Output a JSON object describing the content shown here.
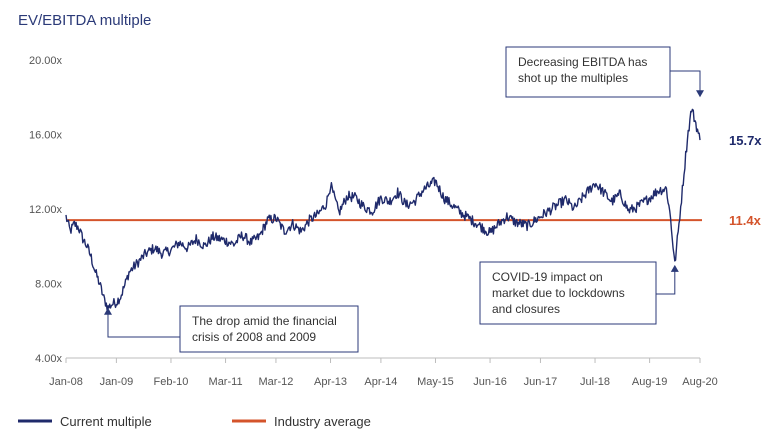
{
  "chart_data": {
    "type": "line",
    "title": "EV/EBITDA multiple",
    "xlabel": "",
    "ylabel": "",
    "ylim": [
      4,
      20
    ],
    "yticks": [
      4,
      8,
      12,
      16,
      20
    ],
    "ytick_labels": [
      "4.00x",
      "8.00x",
      "12.00x",
      "16.00x",
      "20.00x"
    ],
    "xlim": [
      "2008-01",
      "2020-08"
    ],
    "xticks": [
      "2008-01",
      "2009-01",
      "2010-02",
      "2011-03",
      "2012-03",
      "2013-04",
      "2014-04",
      "2015-05",
      "2016-06",
      "2017-06",
      "2018-07",
      "2019-08",
      "2020-08"
    ],
    "xtick_labels": [
      "Jan-08",
      "Jan-09",
      "Feb-10",
      "Mar-11",
      "Mar-12",
      "Apr-13",
      "Apr-14",
      "May-15",
      "Jun-16",
      "Jun-17",
      "Jul-18",
      "Aug-19",
      "Aug-20"
    ],
    "grid": false,
    "legend": "bottom",
    "colors": {
      "current": "#1f2a6b",
      "average": "#d4542b",
      "title": "#2b3a78"
    },
    "series": [
      {
        "name": "Current multiple",
        "x": [
          "2008-01",
          "2008-02",
          "2008-03",
          "2008-04",
          "2008-05",
          "2008-06",
          "2008-07",
          "2008-08",
          "2008-09",
          "2008-10",
          "2008-11",
          "2008-12",
          "2009-01",
          "2009-02",
          "2009-03",
          "2009-04",
          "2009-06",
          "2009-08",
          "2009-10",
          "2009-12",
          "2010-02",
          "2010-04",
          "2010-06",
          "2010-08",
          "2010-10",
          "2010-12",
          "2011-03",
          "2011-05",
          "2011-07",
          "2011-09",
          "2011-11",
          "2012-01",
          "2012-03",
          "2012-05",
          "2012-07",
          "2012-09",
          "2012-11",
          "2013-01",
          "2013-03",
          "2013-04",
          "2013-06",
          "2013-08",
          "2013-10",
          "2013-12",
          "2014-02",
          "2014-04",
          "2014-06",
          "2014-08",
          "2014-10",
          "2014-12",
          "2015-02",
          "2015-05",
          "2015-07",
          "2015-09",
          "2015-11",
          "2016-01",
          "2016-03",
          "2016-06",
          "2016-08",
          "2016-10",
          "2016-12",
          "2017-03",
          "2017-06",
          "2017-08",
          "2017-10",
          "2017-12",
          "2018-02",
          "2018-04",
          "2018-07",
          "2018-09",
          "2018-11",
          "2019-01",
          "2019-03",
          "2019-05",
          "2019-08",
          "2019-10",
          "2019-12",
          "2020-01",
          "2020-02",
          "2020-03",
          "2020-04",
          "2020-05",
          "2020-06",
          "2020-07",
          "2020-08"
        ],
        "values": [
          11.6,
          10.8,
          11.2,
          11.0,
          10.4,
          10.0,
          9.4,
          8.6,
          8.0,
          7.2,
          6.7,
          6.9,
          7.0,
          7.3,
          7.9,
          8.6,
          9.1,
          9.6,
          9.9,
          9.6,
          9.8,
          10.2,
          9.9,
          10.4,
          10.0,
          10.5,
          10.3,
          10.1,
          10.6,
          10.2,
          10.5,
          11.4,
          11.5,
          10.8,
          11.2,
          10.8,
          11.4,
          11.7,
          12.3,
          13.3,
          11.8,
          12.7,
          12.6,
          12.1,
          11.9,
          12.6,
          12.4,
          12.9,
          12.2,
          12.4,
          13.0,
          13.5,
          12.6,
          12.2,
          11.8,
          11.5,
          11.2,
          10.7,
          11.2,
          11.6,
          11.3,
          11.1,
          11.6,
          11.9,
          12.2,
          12.5,
          12.0,
          12.6,
          13.4,
          12.9,
          12.4,
          12.8,
          11.9,
          12.1,
          12.6,
          13.0,
          13.1,
          11.5,
          9.0,
          11.2,
          13.5,
          15.8,
          17.4,
          16.6,
          15.7
        ]
      },
      {
        "name": "Industry average",
        "x": [
          "2008-01",
          "2020-08"
        ],
        "values": [
          11.4,
          11.4
        ]
      }
    ],
    "end_labels": {
      "current": "15.7x",
      "average": "11.4x"
    },
    "annotations": [
      {
        "lines": [
          "Decreasing EBITDA has",
          "shot up the multiples"
        ],
        "target": {
          "x": "2020-08",
          "y": 18.0
        }
      },
      {
        "lines": [
          "COVID-19 impact on",
          "market due to lockdowns",
          "and closures"
        ],
        "target": {
          "x": "2020-02",
          "y": 9.0
        }
      },
      {
        "lines": [
          "The drop amid the financial",
          "crisis of 2008 and 2009"
        ],
        "target": {
          "x": "2008-11",
          "y": 6.7
        }
      }
    ]
  }
}
